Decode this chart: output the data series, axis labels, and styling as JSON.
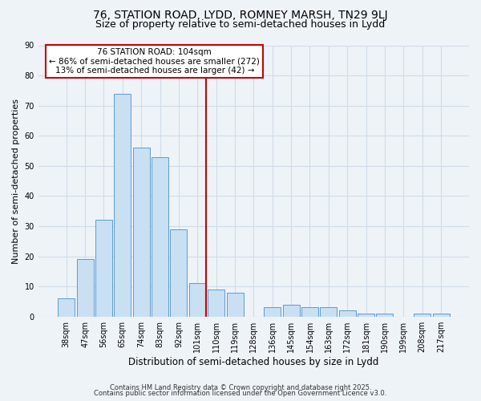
{
  "title": "76, STATION ROAD, LYDD, ROMNEY MARSH, TN29 9LJ",
  "subtitle": "Size of property relative to semi-detached houses in Lydd",
  "xlabel": "Distribution of semi-detached houses by size in Lydd",
  "ylabel": "Number of semi-detached properties",
  "bar_labels": [
    "38sqm",
    "47sqm",
    "56sqm",
    "65sqm",
    "74sqm",
    "83sqm",
    "92sqm",
    "101sqm",
    "110sqm",
    "119sqm",
    "128sqm",
    "136sqm",
    "145sqm",
    "154sqm",
    "163sqm",
    "172sqm",
    "181sqm",
    "190sqm",
    "199sqm",
    "208sqm",
    "217sqm"
  ],
  "bar_values": [
    6,
    19,
    32,
    74,
    56,
    53,
    29,
    11,
    9,
    8,
    0,
    3,
    4,
    3,
    3,
    2,
    1,
    1,
    0,
    1,
    1
  ],
  "bar_color": "#c9dff2",
  "bar_edge_color": "#5b9bd5",
  "annotation_text_line1": "76 STATION ROAD: 104sqm",
  "annotation_text_line2": "← 86% of semi-detached houses are smaller (272)",
  "annotation_text_line3": "13% of semi-detached houses are larger (42) →",
  "annotation_box_color": "#ffffff",
  "annotation_box_edge_color": "#cc0000",
  "vline_color": "#cc0000",
  "ylim": [
    0,
    90
  ],
  "yticks": [
    0,
    10,
    20,
    30,
    40,
    50,
    60,
    70,
    80,
    90
  ],
  "grid_color": "#d0dce8",
  "background_color": "#eef3f8",
  "footer_line1": "Contains HM Land Registry data © Crown copyright and database right 2025.",
  "footer_line2": "Contains public sector information licensed under the Open Government Licence v3.0.",
  "title_fontsize": 10,
  "subtitle_fontsize": 9,
  "xlabel_fontsize": 8.5,
  "ylabel_fontsize": 8,
  "tick_fontsize": 7,
  "annotation_fontsize": 7.5,
  "footer_fontsize": 6
}
